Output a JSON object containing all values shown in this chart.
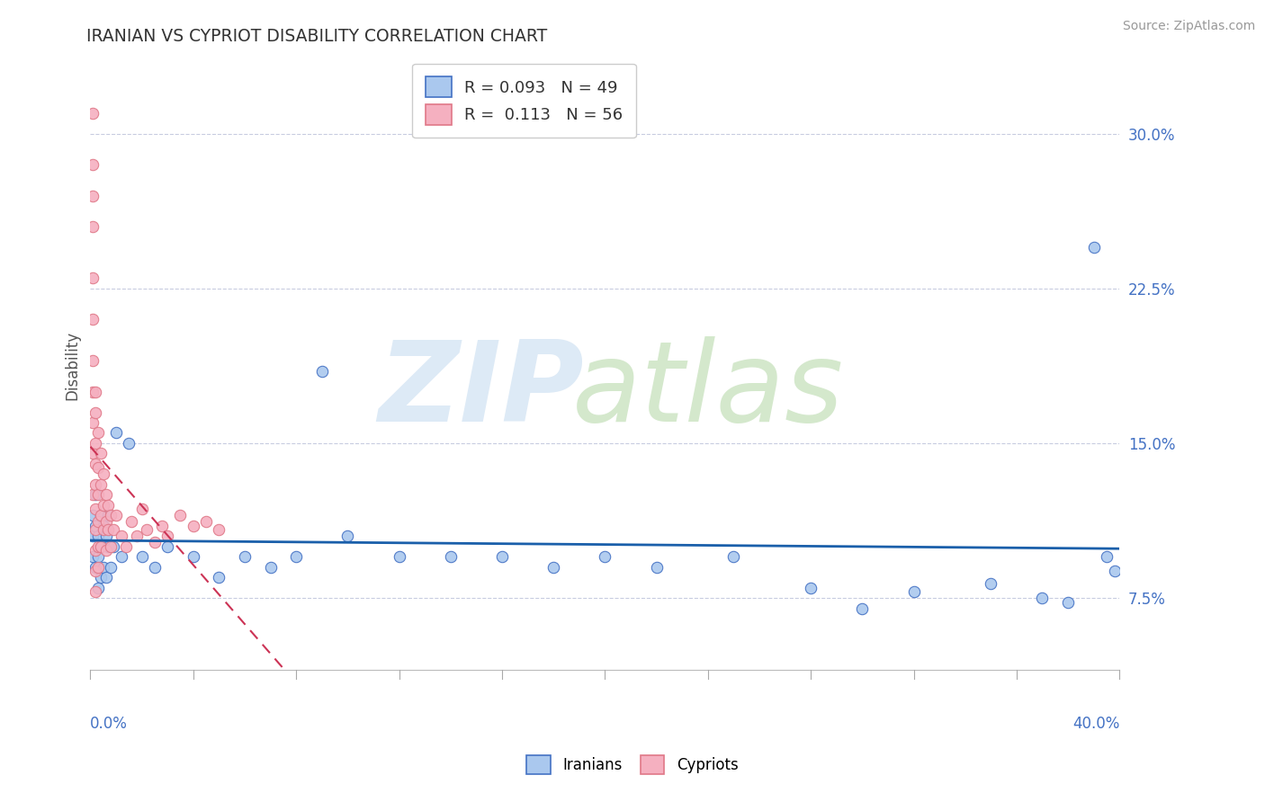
{
  "title": "IRANIAN VS CYPRIOT DISABILITY CORRELATION CHART",
  "source": "Source: ZipAtlas.com",
  "ylabel": "Disability",
  "xlim": [
    0.0,
    0.4
  ],
  "ylim": [
    0.04,
    0.335
  ],
  "ytick_vals": [
    0.075,
    0.15,
    0.225,
    0.3
  ],
  "ytick_labels": [
    "7.5%",
    "15.0%",
    "22.5%",
    "30.0%"
  ],
  "legend_R_iranian": "0.093",
  "legend_N_iranian": "49",
  "legend_R_cypriot": "0.113",
  "legend_N_cypriot": "56",
  "color_iranian_fill": "#aac8ee",
  "color_iranian_edge": "#4472c4",
  "color_cypriot_fill": "#f5b0c0",
  "color_cypriot_edge": "#e07888",
  "color_iranian_line": "#1a5faa",
  "color_cypriot_line": "#cc3355",
  "iranians_x": [
    0.001,
    0.001,
    0.001,
    0.002,
    0.002,
    0.002,
    0.003,
    0.003,
    0.003,
    0.004,
    0.004,
    0.004,
    0.005,
    0.005,
    0.006,
    0.006,
    0.007,
    0.007,
    0.008,
    0.009,
    0.01,
    0.012,
    0.015,
    0.02,
    0.025,
    0.03,
    0.04,
    0.05,
    0.06,
    0.07,
    0.08,
    0.09,
    0.1,
    0.12,
    0.14,
    0.16,
    0.18,
    0.2,
    0.22,
    0.25,
    0.28,
    0.3,
    0.32,
    0.35,
    0.37,
    0.38,
    0.39,
    0.395,
    0.398
  ],
  "iranians_y": [
    0.115,
    0.105,
    0.095,
    0.125,
    0.11,
    0.09,
    0.105,
    0.095,
    0.08,
    0.115,
    0.1,
    0.085,
    0.11,
    0.09,
    0.105,
    0.085,
    0.1,
    0.115,
    0.09,
    0.1,
    0.155,
    0.095,
    0.15,
    0.095,
    0.09,
    0.1,
    0.095,
    0.085,
    0.095,
    0.09,
    0.095,
    0.185,
    0.105,
    0.095,
    0.095,
    0.095,
    0.09,
    0.095,
    0.09,
    0.095,
    0.08,
    0.07,
    0.078,
    0.082,
    0.075,
    0.073,
    0.245,
    0.095,
    0.088
  ],
  "cypriots_x": [
    0.001,
    0.001,
    0.001,
    0.001,
    0.001,
    0.001,
    0.001,
    0.001,
    0.001,
    0.001,
    0.001,
    0.002,
    0.002,
    0.002,
    0.002,
    0.002,
    0.002,
    0.002,
    0.002,
    0.002,
    0.002,
    0.003,
    0.003,
    0.003,
    0.003,
    0.003,
    0.003,
    0.004,
    0.004,
    0.004,
    0.004,
    0.005,
    0.005,
    0.005,
    0.006,
    0.006,
    0.006,
    0.007,
    0.007,
    0.008,
    0.008,
    0.009,
    0.01,
    0.012,
    0.014,
    0.016,
    0.018,
    0.02,
    0.022,
    0.025,
    0.028,
    0.03,
    0.035,
    0.04,
    0.045,
    0.05
  ],
  "cypriots_y": [
    0.31,
    0.285,
    0.27,
    0.255,
    0.23,
    0.21,
    0.19,
    0.175,
    0.16,
    0.145,
    0.125,
    0.175,
    0.165,
    0.15,
    0.14,
    0.13,
    0.118,
    0.108,
    0.098,
    0.088,
    0.078,
    0.155,
    0.138,
    0.125,
    0.112,
    0.1,
    0.09,
    0.145,
    0.13,
    0.115,
    0.1,
    0.135,
    0.12,
    0.108,
    0.125,
    0.112,
    0.098,
    0.12,
    0.108,
    0.115,
    0.1,
    0.108,
    0.115,
    0.105,
    0.1,
    0.112,
    0.105,
    0.118,
    0.108,
    0.102,
    0.11,
    0.105,
    0.115,
    0.11,
    0.112,
    0.108
  ]
}
